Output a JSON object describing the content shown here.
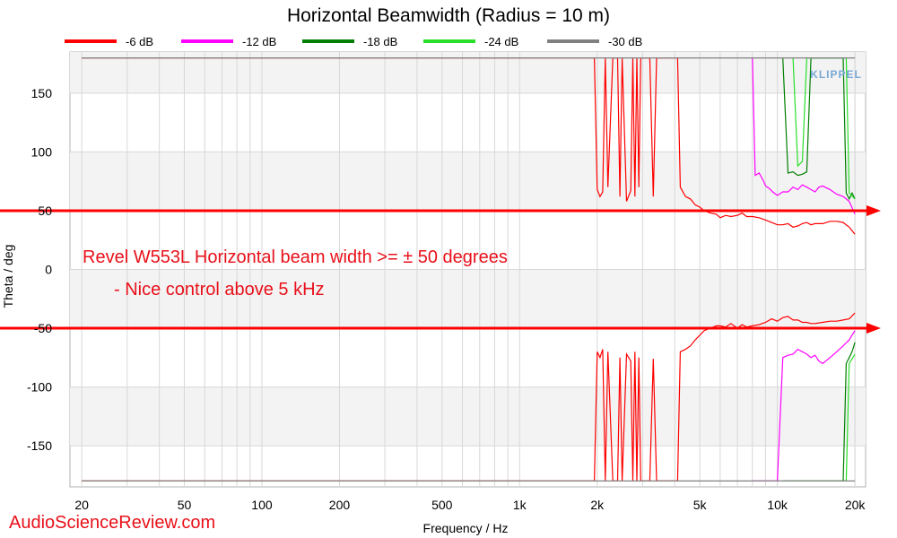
{
  "chart_data": {
    "type": "line",
    "title": "Horizontal Beamwidth (Radius = 10 m)",
    "xlabel": "Frequency / Hz",
    "ylabel": "Theta / deg",
    "x_scale": "log",
    "xlim": [
      18,
      22000
    ],
    "ylim": [
      -185,
      185
    ],
    "x_ticks": [
      20,
      50,
      100,
      200,
      500,
      1000,
      2000,
      5000,
      10000,
      20000
    ],
    "x_tick_labels": [
      "20",
      "50",
      "100",
      "200",
      "500",
      "1k",
      "2k",
      "5k",
      "10k",
      "20k"
    ],
    "y_ticks": [
      150,
      100,
      50,
      0,
      -50,
      -100,
      -150
    ],
    "y_tick_labels": [
      "150",
      "100",
      "50",
      "0",
      "-50",
      "-100",
      "-150"
    ],
    "grid": true,
    "legend_position": "top",
    "series": [
      {
        "name": "-6 dB",
        "color": "#ff0000",
        "x": [
          20,
          1950,
          2000,
          2050,
          2100,
          2150,
          2200,
          2300,
          2400,
          2450,
          2500,
          2600,
          2700,
          2750,
          2800,
          2850,
          2900,
          2950,
          3000,
          3100,
          3200,
          3300,
          3400,
          3500,
          3600,
          3700,
          3800,
          3900,
          4000,
          4100,
          4200,
          4400,
          4600,
          4800,
          5000,
          5200,
          5500,
          5800,
          6000,
          6300,
          6600,
          7000,
          7300,
          7600,
          8000,
          8500,
          9000,
          9500,
          10000,
          10500,
          11000,
          11500,
          12000,
          12500,
          13000,
          13500,
          14000,
          15000,
          16000,
          17000,
          18000,
          19000,
          20000
        ],
        "upper": [
          180,
          180,
          68,
          62,
          66,
          180,
          70,
          180,
          180,
          62,
          180,
          58,
          67,
          180,
          62,
          180,
          70,
          180,
          180,
          180,
          180,
          62,
          180,
          180,
          180,
          180,
          180,
          180,
          180,
          180,
          70,
          62,
          60,
          55,
          53,
          50,
          48,
          47,
          44,
          46,
          45,
          46,
          48,
          45,
          45,
          44,
          42,
          40,
          38,
          38,
          39,
          36,
          37,
          39,
          40,
          38,
          39,
          39,
          41,
          41,
          40,
          36,
          30
        ],
        "lower": [
          -180,
          -180,
          -70,
          -75,
          -68,
          -180,
          -70,
          -180,
          -180,
          -75,
          -180,
          -72,
          -78,
          -180,
          -70,
          -180,
          -75,
          -180,
          -180,
          -180,
          -180,
          -76,
          -180,
          -180,
          -180,
          -180,
          -180,
          -180,
          -180,
          -180,
          -70,
          -68,
          -65,
          -60,
          -56,
          -52,
          -50,
          -48,
          -48,
          -49,
          -46,
          -50,
          -47,
          -49,
          -48,
          -47,
          -45,
          -42,
          -44,
          -41,
          -40,
          -43,
          -43,
          -45,
          -45,
          -46,
          -46,
          -45,
          -44,
          -44,
          -43,
          -42,
          -37
        ]
      },
      {
        "name": "-12 dB",
        "color": "#ff00ff",
        "x": [
          8000,
          8200,
          8500,
          8800,
          9000,
          9300,
          9600,
          10000,
          10500,
          11000,
          11500,
          12000,
          12500,
          13000,
          13500,
          14000,
          14500,
          15000,
          16000,
          17000,
          18000,
          19000,
          20000
        ],
        "upper": [
          180,
          80,
          82,
          76,
          71,
          69,
          66,
          63,
          66,
          66,
          70,
          68,
          72,
          70,
          68,
          66,
          70,
          71,
          68,
          64,
          62,
          58,
          47
        ],
        "lower": [
          -180,
          -180,
          -180,
          -180,
          -180,
          -180,
          -180,
          -180,
          -75,
          -73,
          -72,
          -68,
          -70,
          -72,
          -75,
          -73,
          -78,
          -80,
          -75,
          -70,
          -65,
          -60,
          -52
        ]
      },
      {
        "name": "-18 dB",
        "color": "#007f00",
        "x": [
          10500,
          11000,
          11500,
          12000,
          12500,
          13000,
          13500,
          17000,
          17500,
          18000,
          18500,
          19000,
          19500,
          20000
        ],
        "upper": [
          180,
          82,
          83,
          80,
          81,
          83,
          180,
          180,
          180,
          180,
          65,
          60,
          65,
          60
        ],
        "lower": [
          -180,
          -180,
          -180,
          -180,
          -180,
          -180,
          -180,
          -180,
          -180,
          -180,
          -80,
          -75,
          -70,
          -62
        ]
      },
      {
        "name": "-24 dB",
        "color": "#2adf2a",
        "x": [
          11500,
          12000,
          12500,
          13000,
          17000,
          17500,
          18000,
          18500,
          19000,
          20000
        ],
        "upper": [
          180,
          88,
          92,
          180,
          180,
          180,
          180,
          180,
          65,
          60
        ],
        "lower": [
          -180,
          -180,
          -180,
          -180,
          -180,
          -180,
          -180,
          -180,
          -80,
          -72
        ]
      },
      {
        "name": "-30 dB",
        "color": "#808080",
        "x": [
          20,
          20000
        ],
        "upper": [
          180,
          180
        ],
        "lower": [
          -180,
          -180
        ]
      }
    ],
    "reference_lines": [
      {
        "y": 50,
        "color": "#ff0000"
      },
      {
        "y": -50,
        "color": "#ff0000"
      }
    ],
    "annotations": [
      "Revel W553L Horizontal beam width >= ± 50 degrees",
      "- Nice control above 5 kHz"
    ]
  },
  "logo_text": "KLIPPEL",
  "watermark": "AudioScienceReview.com"
}
